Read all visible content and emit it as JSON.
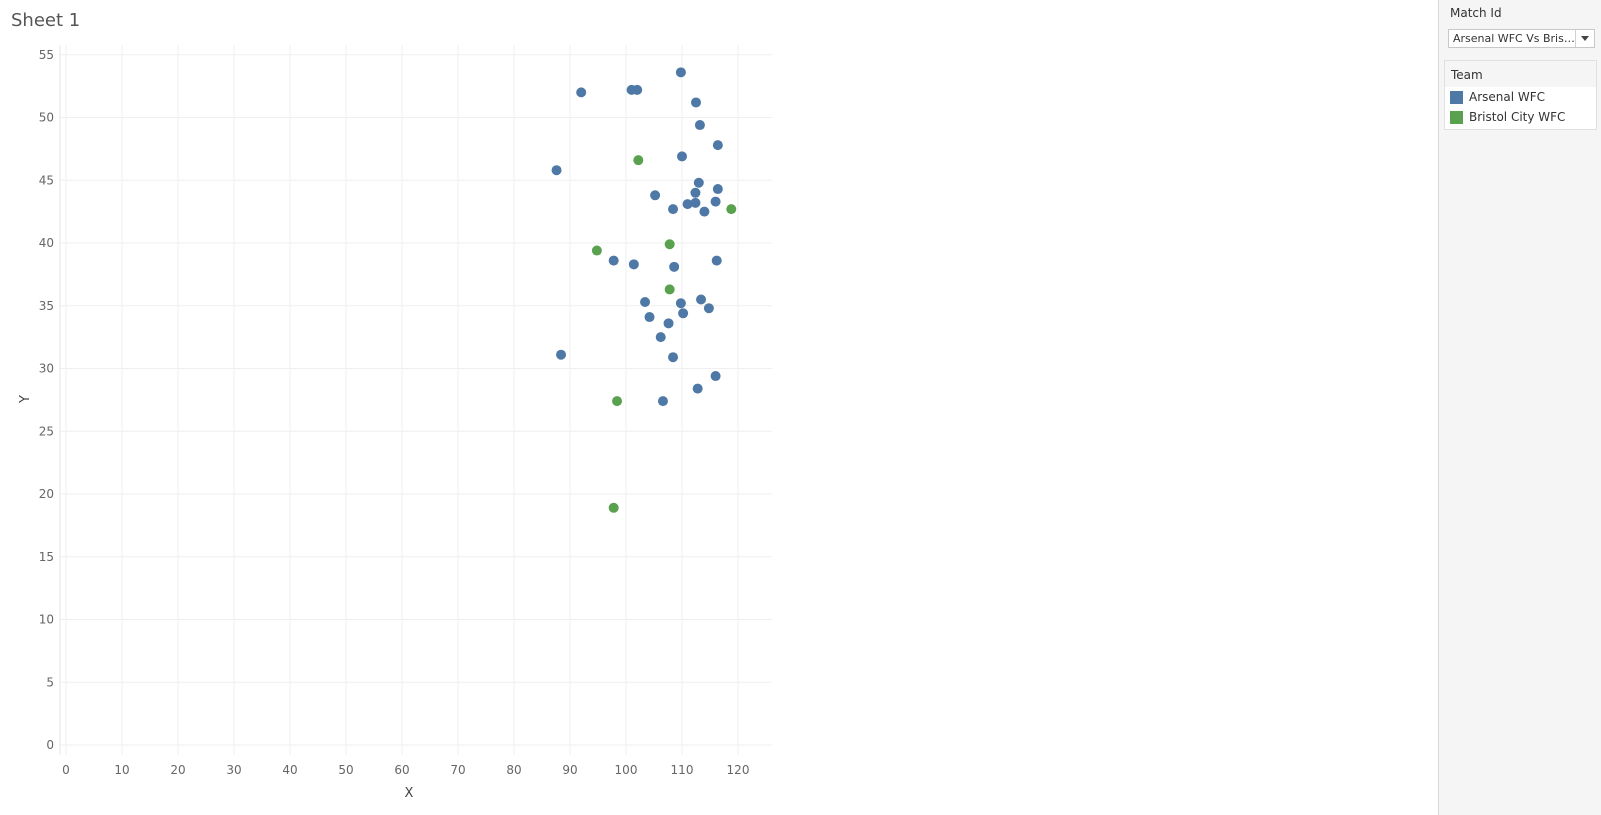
{
  "sheet": {
    "title": "Sheet 1"
  },
  "filter": {
    "title": "Match Id",
    "value": "Arsenal WFC Vs Bristol City WFC"
  },
  "legend": {
    "title": "Team",
    "items": [
      {
        "label": "Arsenal WFC",
        "color": "#4e79a7"
      },
      {
        "label": "Bristol City WFC",
        "color": "#59a14f"
      }
    ]
  },
  "chart_data": {
    "type": "scatter",
    "title": "",
    "xlabel": "X",
    "ylabel": "Y",
    "xlim": [
      0,
      126
    ],
    "ylim": [
      0,
      55
    ],
    "xticks": [
      0,
      10,
      20,
      30,
      40,
      50,
      60,
      70,
      80,
      90,
      100,
      110,
      120
    ],
    "yticks": [
      0,
      5,
      10,
      15,
      20,
      25,
      30,
      35,
      40,
      45,
      50,
      55
    ],
    "grid": true,
    "series": [
      {
        "name": "Arsenal WFC",
        "color": "#4e79a7",
        "points": [
          [
            109.8,
            53.6
          ],
          [
            92.0,
            52.0
          ],
          [
            101.0,
            52.2
          ],
          [
            102.0,
            52.2
          ],
          [
            112.5,
            51.2
          ],
          [
            113.2,
            49.4
          ],
          [
            116.4,
            47.8
          ],
          [
            110.0,
            46.9
          ],
          [
            87.6,
            45.8
          ],
          [
            113.0,
            44.8
          ],
          [
            116.4,
            44.3
          ],
          [
            112.4,
            44.0
          ],
          [
            105.2,
            43.8
          ],
          [
            111.0,
            43.1
          ],
          [
            112.4,
            43.2
          ],
          [
            116.0,
            43.3
          ],
          [
            108.4,
            42.7
          ],
          [
            114.0,
            42.5
          ],
          [
            97.8,
            38.6
          ],
          [
            101.4,
            38.3
          ],
          [
            108.6,
            38.1
          ],
          [
            116.2,
            38.6
          ],
          [
            103.4,
            35.3
          ],
          [
            109.8,
            35.2
          ],
          [
            113.4,
            35.5
          ],
          [
            114.8,
            34.8
          ],
          [
            104.2,
            34.1
          ],
          [
            110.2,
            34.4
          ],
          [
            107.6,
            33.6
          ],
          [
            106.2,
            32.5
          ],
          [
            88.4,
            31.1
          ],
          [
            108.4,
            30.9
          ],
          [
            116.0,
            29.4
          ],
          [
            112.8,
            28.4
          ],
          [
            106.6,
            27.4
          ]
        ]
      },
      {
        "name": "Bristol City WFC",
        "color": "#59a14f",
        "points": [
          [
            102.2,
            46.6
          ],
          [
            118.8,
            42.7
          ],
          [
            107.8,
            39.9
          ],
          [
            94.8,
            39.4
          ],
          [
            107.8,
            36.3
          ],
          [
            98.4,
            27.4
          ],
          [
            97.8,
            18.9
          ]
        ]
      }
    ]
  }
}
